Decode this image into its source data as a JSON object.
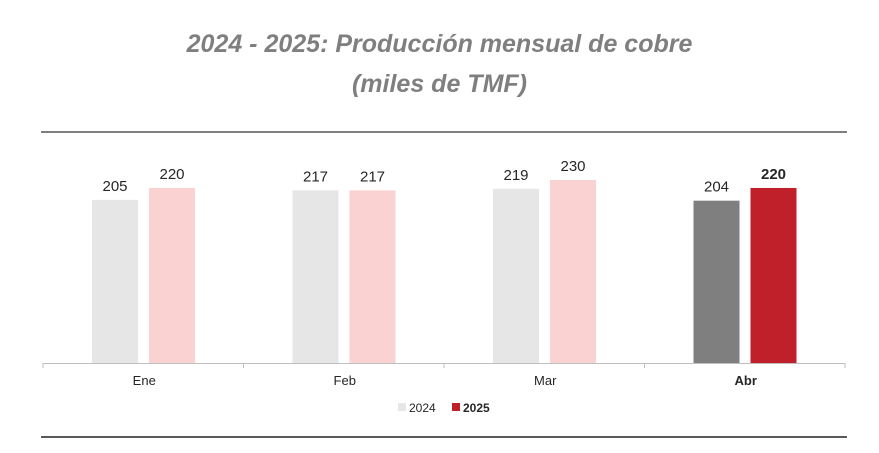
{
  "title_line1": "2024 - 2025: Producción mensual de cobre",
  "title_line2": "(miles de TMF)",
  "chart_data": {
    "type": "bar",
    "title": "2024 - 2025: Producción mensual de cobre (miles de TMF)",
    "categories": [
      "Ene",
      "Feb",
      "Mar",
      "Abr"
    ],
    "highlight_category": "Abr",
    "series": [
      {
        "name": "2024",
        "values": [
          205,
          217,
          219,
          204
        ],
        "color": "#e7e6e6",
        "highlight_color": "#7f7f7f"
      },
      {
        "name": "2025",
        "values": [
          220,
          217,
          230,
          220
        ],
        "color": "#fad2d2",
        "highlight_color": "#c0202a"
      }
    ],
    "legend_position": "bottom-center",
    "grid": false
  }
}
